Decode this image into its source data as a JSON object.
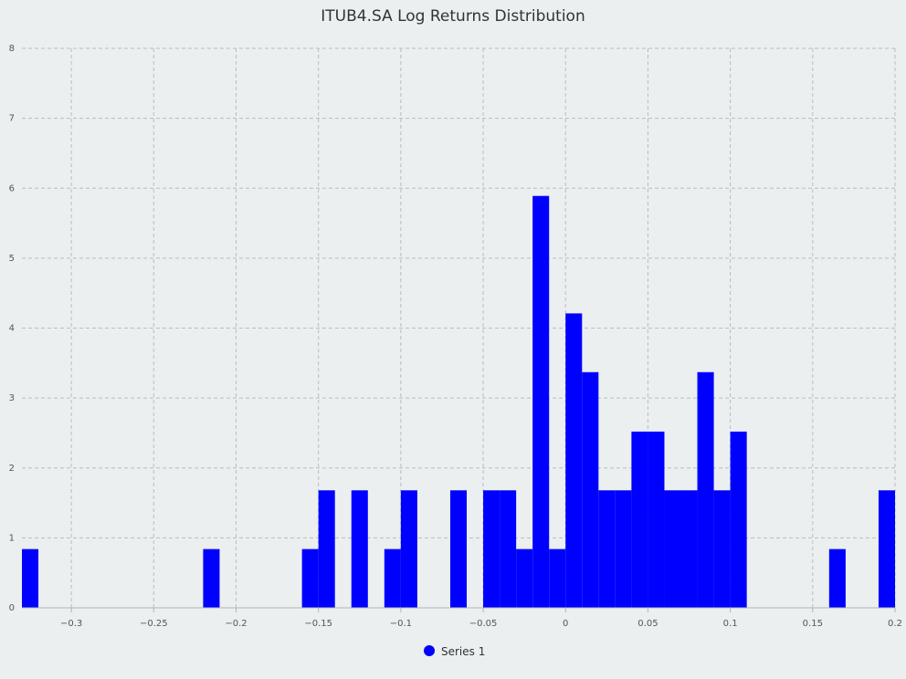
{
  "chart_data": {
    "type": "bar",
    "title": "ITUB4.SA Log Returns Distribution",
    "xlabel": "",
    "ylabel": "",
    "xlim": [
      -0.33,
      0.2
    ],
    "ylim": [
      0,
      8
    ],
    "x_ticks": [
      -0.3,
      -0.25,
      -0.2,
      -0.15,
      -0.1,
      -0.05,
      0,
      0.05,
      0.1,
      0.15,
      0.2
    ],
    "x_tick_labels": [
      "−0.3",
      "−0.25",
      "−0.2",
      "−0.15",
      "−0.1",
      "−0.05",
      "0",
      "0.05",
      "0.1",
      "0.15",
      "0.2"
    ],
    "y_ticks": [
      0,
      1,
      2,
      3,
      4,
      5,
      6,
      7,
      8
    ],
    "y_tick_labels": [
      "0",
      "1",
      "2",
      "3",
      "4",
      "5",
      "6",
      "7",
      "8"
    ],
    "grid": true,
    "bin_width": 0.01,
    "series": [
      {
        "name": "Series 1",
        "color": "#0000ff",
        "bins": [
          {
            "x0": -0.33,
            "x1": -0.32,
            "value": 0.84
          },
          {
            "x0": -0.22,
            "x1": -0.21,
            "value": 0.84
          },
          {
            "x0": -0.16,
            "x1": -0.15,
            "value": 0.84
          },
          {
            "x0": -0.15,
            "x1": -0.14,
            "value": 1.68
          },
          {
            "x0": -0.13,
            "x1": -0.12,
            "value": 1.68
          },
          {
            "x0": -0.11,
            "x1": -0.1,
            "value": 0.84
          },
          {
            "x0": -0.1,
            "x1": -0.09,
            "value": 1.68
          },
          {
            "x0": -0.07,
            "x1": -0.06,
            "value": 1.68
          },
          {
            "x0": -0.05,
            "x1": -0.04,
            "value": 1.68
          },
          {
            "x0": -0.04,
            "x1": -0.03,
            "value": 1.68
          },
          {
            "x0": -0.03,
            "x1": -0.02,
            "value": 0.84
          },
          {
            "x0": -0.02,
            "x1": -0.01,
            "value": 5.89
          },
          {
            "x0": -0.01,
            "x1": 0.0,
            "value": 0.84
          },
          {
            "x0": 0.0,
            "x1": 0.01,
            "value": 4.21
          },
          {
            "x0": 0.01,
            "x1": 0.02,
            "value": 3.37
          },
          {
            "x0": 0.02,
            "x1": 0.03,
            "value": 1.68
          },
          {
            "x0": 0.03,
            "x1": 0.04,
            "value": 1.68
          },
          {
            "x0": 0.04,
            "x1": 0.05,
            "value": 2.52
          },
          {
            "x0": 0.05,
            "x1": 0.06,
            "value": 2.52
          },
          {
            "x0": 0.06,
            "x1": 0.07,
            "value": 1.68
          },
          {
            "x0": 0.07,
            "x1": 0.08,
            "value": 1.68
          },
          {
            "x0": 0.08,
            "x1": 0.09,
            "value": 3.37
          },
          {
            "x0": 0.09,
            "x1": 0.1,
            "value": 1.68
          },
          {
            "x0": 0.1,
            "x1": 0.11,
            "value": 2.52
          },
          {
            "x0": 0.16,
            "x1": 0.17,
            "value": 0.84
          },
          {
            "x0": 0.19,
            "x1": 0.2,
            "value": 1.68
          }
        ]
      }
    ],
    "legend": {
      "position": "bottom-center"
    }
  }
}
